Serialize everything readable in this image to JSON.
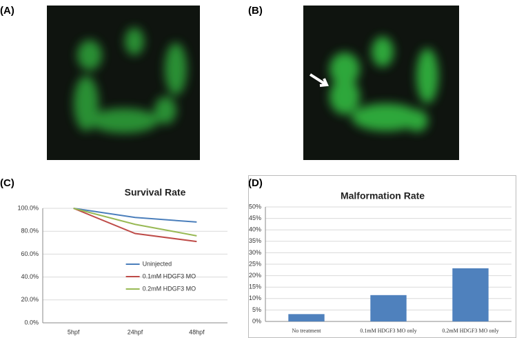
{
  "panel_labels": [
    "(A)",
    "(B)",
    "(C)",
    "(D)"
  ],
  "chart_data": [
    {
      "type": "line",
      "title": "Survival Rate",
      "categories": [
        "5hpf",
        "24hpf",
        "48hpf"
      ],
      "series": [
        {
          "name": "Uninjected",
          "color": "#4a7ebb",
          "values": [
            100,
            92,
            88
          ]
        },
        {
          "name": "0.1mM HDGF3 MO",
          "color": "#be4b48",
          "values": [
            100,
            78,
            71
          ]
        },
        {
          "name": "0.2mM HDGF3 MO",
          "color": "#98b954",
          "values": [
            100,
            86,
            76
          ]
        }
      ],
      "ylim": [
        0,
        100
      ],
      "yticks": [
        {
          "value": 0,
          "label": "0.0%"
        },
        {
          "value": 20,
          "label": "20.0%"
        },
        {
          "value": 40,
          "label": "40.0%"
        },
        {
          "value": 60,
          "label": "60.0%"
        },
        {
          "value": 80,
          "label": "80.0%"
        },
        {
          "value": 100,
          "label": "100.0%"
        }
      ],
      "grid": true,
      "legend": "lower center"
    },
    {
      "type": "bar",
      "title": "Malformation Rate",
      "categories": [
        "No treatment",
        "0.1mM HDGF3 MO only",
        "0.2mM HDGF3 MO only"
      ],
      "values": [
        3.2,
        11.5,
        23.2
      ],
      "color": "#4f81bd",
      "ylim": [
        0,
        50
      ],
      "yticks": [
        {
          "value": 0,
          "label": "0%"
        },
        {
          "value": 5,
          "label": "5%"
        },
        {
          "value": 10,
          "label": "10%"
        },
        {
          "value": 15,
          "label": "15%"
        },
        {
          "value": 20,
          "label": "20%"
        },
        {
          "value": 25,
          "label": "25%"
        },
        {
          "value": 30,
          "label": "30%"
        },
        {
          "value": 35,
          "label": "35%"
        },
        {
          "value": 40,
          "label": "40%"
        },
        {
          "value": 45,
          "label": "45%"
        },
        {
          "value": 50,
          "label": "50%"
        }
      ],
      "grid": true
    }
  ]
}
